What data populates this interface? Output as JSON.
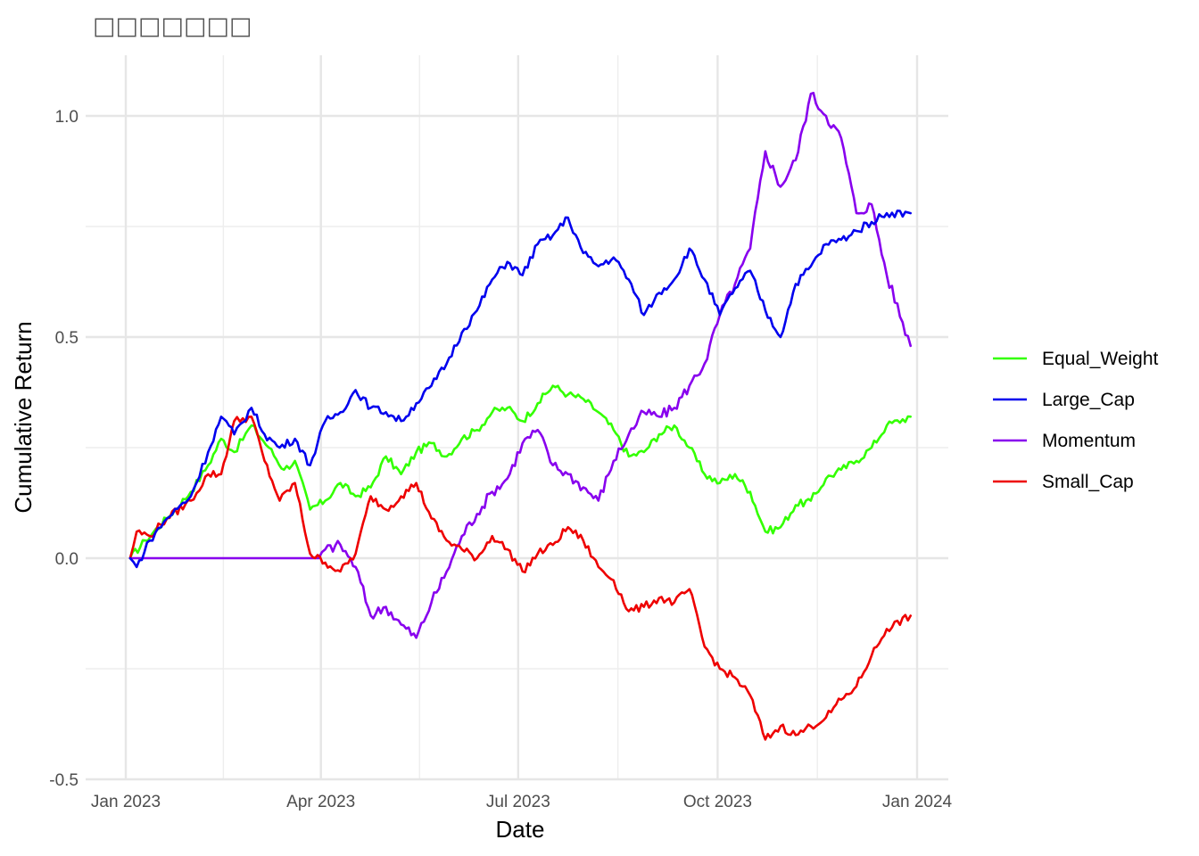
{
  "chart_data": {
    "type": "line",
    "title": "□□□□□□□",
    "xlabel": "Date",
    "ylabel": "Cumulative Return",
    "x_ticks": [
      {
        "date": "2023-01-01",
        "label": "Jan 2023"
      },
      {
        "date": "2023-04-01",
        "label": "Apr 2023"
      },
      {
        "date": "2023-07-01",
        "label": "Jul 2023"
      },
      {
        "date": "2023-10-01",
        "label": "Oct 2023"
      },
      {
        "date": "2024-01-01",
        "label": "Jan 2024"
      }
    ],
    "xlim": [
      "2022-12-17",
      "2024-01-10"
    ],
    "y_ticks": [
      {
        "value": -0.5,
        "label": "-0.5"
      },
      {
        "value": 0.0,
        "label": "0.0"
      },
      {
        "value": 0.5,
        "label": "0.5"
      },
      {
        "value": 1.0,
        "label": "1.0"
      }
    ],
    "ylim": [
      -0.5,
      1.1
    ],
    "grid": true,
    "legend_position": "right",
    "series": [
      {
        "name": "Equal_Weight",
        "color": "#33ff00",
        "points": [
          [
            "2023-01-03",
            0.0
          ],
          [
            "2023-01-10",
            0.04
          ],
          [
            "2023-01-20",
            0.09
          ],
          [
            "2023-01-31",
            0.15
          ],
          [
            "2023-02-08",
            0.21
          ],
          [
            "2023-02-14",
            0.27
          ],
          [
            "2023-02-20",
            0.24
          ],
          [
            "2023-02-28",
            0.3
          ],
          [
            "2023-03-08",
            0.25
          ],
          [
            "2023-03-15",
            0.2
          ],
          [
            "2023-03-20",
            0.22
          ],
          [
            "2023-03-27",
            0.11
          ],
          [
            "2023-04-03",
            0.13
          ],
          [
            "2023-04-10",
            0.17
          ],
          [
            "2023-04-17",
            0.14
          ],
          [
            "2023-04-24",
            0.16
          ],
          [
            "2023-05-01",
            0.23
          ],
          [
            "2023-05-08",
            0.19
          ],
          [
            "2023-05-15",
            0.24
          ],
          [
            "2023-05-22",
            0.26
          ],
          [
            "2023-05-29",
            0.23
          ],
          [
            "2023-06-05",
            0.27
          ],
          [
            "2023-06-12",
            0.29
          ],
          [
            "2023-06-19",
            0.33
          ],
          [
            "2023-06-26",
            0.34
          ],
          [
            "2023-07-03",
            0.31
          ],
          [
            "2023-07-10",
            0.35
          ],
          [
            "2023-07-17",
            0.39
          ],
          [
            "2023-07-24",
            0.37
          ],
          [
            "2023-07-31",
            0.36
          ],
          [
            "2023-08-07",
            0.33
          ],
          [
            "2023-08-14",
            0.29
          ],
          [
            "2023-08-21",
            0.23
          ],
          [
            "2023-08-28",
            0.24
          ],
          [
            "2023-09-04",
            0.28
          ],
          [
            "2023-09-11",
            0.3
          ],
          [
            "2023-09-18",
            0.25
          ],
          [
            "2023-09-25",
            0.19
          ],
          [
            "2023-10-02",
            0.17
          ],
          [
            "2023-10-09",
            0.19
          ],
          [
            "2023-10-16",
            0.15
          ],
          [
            "2023-10-23",
            0.06
          ],
          [
            "2023-10-30",
            0.07
          ],
          [
            "2023-11-06",
            0.12
          ],
          [
            "2023-11-13",
            0.13
          ],
          [
            "2023-11-20",
            0.18
          ],
          [
            "2023-11-27",
            0.2
          ],
          [
            "2023-12-04",
            0.22
          ],
          [
            "2023-12-11",
            0.25
          ],
          [
            "2023-12-18",
            0.3
          ],
          [
            "2023-12-29",
            0.32
          ]
        ]
      },
      {
        "name": "Large_Cap",
        "color": "#0000ee",
        "points": [
          [
            "2023-01-03",
            0.0
          ],
          [
            "2023-01-06",
            -0.02
          ],
          [
            "2023-01-12",
            0.04
          ],
          [
            "2023-01-20",
            0.09
          ],
          [
            "2023-01-31",
            0.14
          ],
          [
            "2023-02-08",
            0.24
          ],
          [
            "2023-02-14",
            0.32
          ],
          [
            "2023-02-20",
            0.28
          ],
          [
            "2023-02-28",
            0.34
          ],
          [
            "2023-03-06",
            0.28
          ],
          [
            "2023-03-13",
            0.25
          ],
          [
            "2023-03-20",
            0.27
          ],
          [
            "2023-03-27",
            0.21
          ],
          [
            "2023-04-03",
            0.31
          ],
          [
            "2023-04-10",
            0.33
          ],
          [
            "2023-04-17",
            0.38
          ],
          [
            "2023-04-24",
            0.34
          ],
          [
            "2023-05-01",
            0.33
          ],
          [
            "2023-05-08",
            0.31
          ],
          [
            "2023-05-15",
            0.35
          ],
          [
            "2023-05-22",
            0.39
          ],
          [
            "2023-05-29",
            0.44
          ],
          [
            "2023-06-05",
            0.51
          ],
          [
            "2023-06-12",
            0.56
          ],
          [
            "2023-06-19",
            0.63
          ],
          [
            "2023-06-26",
            0.67
          ],
          [
            "2023-07-03",
            0.64
          ],
          [
            "2023-07-10",
            0.71
          ],
          [
            "2023-07-17",
            0.73
          ],
          [
            "2023-07-24",
            0.77
          ],
          [
            "2023-07-31",
            0.69
          ],
          [
            "2023-08-07",
            0.66
          ],
          [
            "2023-08-14",
            0.68
          ],
          [
            "2023-08-21",
            0.63
          ],
          [
            "2023-08-28",
            0.55
          ],
          [
            "2023-09-04",
            0.6
          ],
          [
            "2023-09-11",
            0.63
          ],
          [
            "2023-09-18",
            0.7
          ],
          [
            "2023-09-25",
            0.63
          ],
          [
            "2023-10-02",
            0.55
          ],
          [
            "2023-10-09",
            0.61
          ],
          [
            "2023-10-16",
            0.65
          ],
          [
            "2023-10-23",
            0.56
          ],
          [
            "2023-10-30",
            0.5
          ],
          [
            "2023-11-06",
            0.62
          ],
          [
            "2023-11-13",
            0.66
          ],
          [
            "2023-11-20",
            0.71
          ],
          [
            "2023-11-27",
            0.72
          ],
          [
            "2023-12-04",
            0.74
          ],
          [
            "2023-12-11",
            0.76
          ],
          [
            "2023-12-18",
            0.78
          ],
          [
            "2023-12-29",
            0.78
          ]
        ]
      },
      {
        "name": "Momentum",
        "color": "#8800ee",
        "points": [
          [
            "2023-01-03",
            0.0
          ],
          [
            "2023-02-01",
            0.0
          ],
          [
            "2023-03-01",
            0.0
          ],
          [
            "2023-03-31",
            0.0
          ],
          [
            "2023-04-03",
            0.02
          ],
          [
            "2023-04-10",
            0.03
          ],
          [
            "2023-04-17",
            -0.02
          ],
          [
            "2023-04-24",
            -0.13
          ],
          [
            "2023-05-01",
            -0.11
          ],
          [
            "2023-05-08",
            -0.15
          ],
          [
            "2023-05-15",
            -0.18
          ],
          [
            "2023-05-22",
            -0.1
          ],
          [
            "2023-05-29",
            -0.03
          ],
          [
            "2023-06-05",
            0.05
          ],
          [
            "2023-06-12",
            0.1
          ],
          [
            "2023-06-19",
            0.15
          ],
          [
            "2023-06-26",
            0.18
          ],
          [
            "2023-07-03",
            0.26
          ],
          [
            "2023-07-10",
            0.29
          ],
          [
            "2023-07-17",
            0.21
          ],
          [
            "2023-07-24",
            0.19
          ],
          [
            "2023-07-31",
            0.16
          ],
          [
            "2023-08-07",
            0.13
          ],
          [
            "2023-08-14",
            0.22
          ],
          [
            "2023-08-21",
            0.28
          ],
          [
            "2023-08-28",
            0.33
          ],
          [
            "2023-09-04",
            0.32
          ],
          [
            "2023-09-11",
            0.34
          ],
          [
            "2023-09-18",
            0.39
          ],
          [
            "2023-09-25",
            0.44
          ],
          [
            "2023-10-02",
            0.55
          ],
          [
            "2023-10-09",
            0.62
          ],
          [
            "2023-10-16",
            0.7
          ],
          [
            "2023-10-23",
            0.92
          ],
          [
            "2023-10-30",
            0.84
          ],
          [
            "2023-11-06",
            0.9
          ],
          [
            "2023-11-13",
            1.05
          ],
          [
            "2023-11-20",
            1.0
          ],
          [
            "2023-11-27",
            0.95
          ],
          [
            "2023-12-04",
            0.78
          ],
          [
            "2023-12-11",
            0.8
          ],
          [
            "2023-12-18",
            0.64
          ],
          [
            "2023-12-29",
            0.48
          ]
        ]
      },
      {
        "name": "Small_Cap",
        "color": "#ee0000",
        "points": [
          [
            "2023-01-03",
            0.0
          ],
          [
            "2023-01-06",
            0.06
          ],
          [
            "2023-01-12",
            0.05
          ],
          [
            "2023-01-20",
            0.09
          ],
          [
            "2023-01-31",
            0.13
          ],
          [
            "2023-02-08",
            0.19
          ],
          [
            "2023-02-14",
            0.19
          ],
          [
            "2023-02-20",
            0.31
          ],
          [
            "2023-02-28",
            0.32
          ],
          [
            "2023-03-06",
            0.22
          ],
          [
            "2023-03-13",
            0.13
          ],
          [
            "2023-03-20",
            0.17
          ],
          [
            "2023-03-27",
            0.01
          ],
          [
            "2023-04-03",
            -0.01
          ],
          [
            "2023-04-10",
            -0.03
          ],
          [
            "2023-04-17",
            0.01
          ],
          [
            "2023-04-24",
            0.14
          ],
          [
            "2023-05-01",
            0.11
          ],
          [
            "2023-05-08",
            0.14
          ],
          [
            "2023-05-15",
            0.17
          ],
          [
            "2023-05-22",
            0.09
          ],
          [
            "2023-05-29",
            0.04
          ],
          [
            "2023-06-05",
            0.02
          ],
          [
            "2023-06-12",
            0.0
          ],
          [
            "2023-06-19",
            0.05
          ],
          [
            "2023-06-26",
            0.02
          ],
          [
            "2023-07-03",
            -0.03
          ],
          [
            "2023-07-10",
            0.01
          ],
          [
            "2023-07-17",
            0.03
          ],
          [
            "2023-07-24",
            0.07
          ],
          [
            "2023-07-31",
            0.04
          ],
          [
            "2023-08-07",
            -0.02
          ],
          [
            "2023-08-14",
            -0.05
          ],
          [
            "2023-08-21",
            -0.12
          ],
          [
            "2023-08-28",
            -0.11
          ],
          [
            "2023-09-04",
            -0.09
          ],
          [
            "2023-09-11",
            -0.1
          ],
          [
            "2023-09-18",
            -0.07
          ],
          [
            "2023-09-25",
            -0.2
          ],
          [
            "2023-10-02",
            -0.25
          ],
          [
            "2023-10-09",
            -0.27
          ],
          [
            "2023-10-16",
            -0.31
          ],
          [
            "2023-10-23",
            -0.41
          ],
          [
            "2023-10-30",
            -0.38
          ],
          [
            "2023-11-06",
            -0.4
          ],
          [
            "2023-11-13",
            -0.38
          ],
          [
            "2023-11-20",
            -0.36
          ],
          [
            "2023-11-27",
            -0.32
          ],
          [
            "2023-12-04",
            -0.29
          ],
          [
            "2023-12-11",
            -0.22
          ],
          [
            "2023-12-18",
            -0.16
          ],
          [
            "2023-12-29",
            -0.13
          ]
        ]
      }
    ]
  }
}
